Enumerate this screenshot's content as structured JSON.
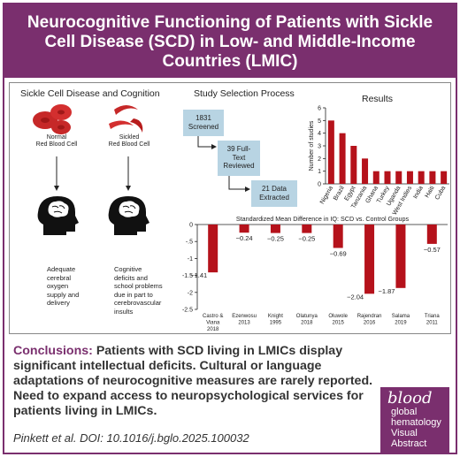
{
  "header": {
    "title_line1": "Neurocognitive Functioning of Patients with Sickle",
    "title_line2": "Cell Disease (SCD) in Low- and Middle-Income",
    "title_line3": "Countries (LMIC)"
  },
  "sections": {
    "cognition_title": "Sickle Cell Disease and Cognition",
    "selection_title": "Study Selection Process",
    "results_title": "Results"
  },
  "cognition": {
    "normal_label_1": "Normal",
    "normal_label_2": "Red Blood Cell",
    "sickled_label_1": "Sickled",
    "sickled_label_2": "Red Blood Cell",
    "normal_outcome": [
      "Adequate",
      "cerebral",
      "oxygen",
      "supply and",
      "delivery"
    ],
    "sickled_outcome": [
      "Cognitive",
      "deficits and",
      "school problems",
      "due in part to",
      "cerebrovascular",
      "insults"
    ]
  },
  "selection": {
    "box1": [
      "1831",
      "Screened"
    ],
    "box2": [
      "39 Full-",
      "Text",
      "Reviewed"
    ],
    "box3": [
      "21 Data",
      "Extracted"
    ]
  },
  "chart_data": [
    {
      "type": "bar",
      "title": "Results",
      "ylabel": "Number of studies",
      "categories": [
        "Nigeria",
        "Brazil",
        "Egypt",
        "Tanzania",
        "Ghana",
        "Turkey",
        "Uganda",
        "West Indies",
        "India",
        "Haiti",
        "Cuba"
      ],
      "values": [
        5,
        4,
        3,
        2,
        1,
        1,
        1,
        1,
        1,
        1,
        1
      ],
      "ylim": [
        0,
        6
      ],
      "yticks": [
        "0",
        "1",
        "2",
        "3",
        "4",
        "5",
        "6"
      ],
      "color": "#b5121b"
    },
    {
      "type": "bar",
      "title": "Standardized Mean Difference in IQ: SCD vs. Control Groups",
      "categories": [
        "Castro & Viana 2018",
        "Ezenwosu 2013",
        "Knight 1995",
        "Olatunya 2018",
        "Oluwole 2015",
        "Rajendran 2016",
        "Salama 2019",
        "Triana 2011"
      ],
      "category_lines": [
        [
          "Castro &",
          "Viana",
          "2018"
        ],
        [
          "Ezenwosu",
          "2013"
        ],
        [
          "Knight",
          "1995"
        ],
        [
          "Olatunya",
          "2018"
        ],
        [
          "Oluwole",
          "2015"
        ],
        [
          "Rajendran",
          "2016"
        ],
        [
          "Salama",
          "2019"
        ],
        [
          "Triana",
          "2011"
        ]
      ],
      "values": [
        -1.41,
        -0.24,
        -0.25,
        -0.25,
        -0.69,
        -2.04,
        -1.87,
        -0.57
      ],
      "value_labels": [
        "−1.41",
        "−0.24",
        "−0.25",
        "−0.25",
        "−0.69",
        "−2.04",
        "−1.87",
        "−0.57"
      ],
      "ylim": [
        -2.5,
        0
      ],
      "yticks": [
        "0",
        "-.5",
        "-1",
        "-1.5",
        "-2",
        "-2.5"
      ],
      "color": "#b5121b"
    }
  ],
  "conclusion": {
    "lead": "Conclusions:",
    "body": "Patients with SCD living in LMICs display significant intellectual deficits. Cultural or language adaptations of neurocognitive measures are rarely reported. Need to expand access to neuropsychological services for patients living in LMICs.",
    "citation": "Pinkett et al. DOI: 10.1016/j.bglo.2025.100032"
  },
  "logo": {
    "brand": "blood",
    "line1": "global",
    "line2": "hematology",
    "line3": "Visual",
    "line4": "Abstract"
  },
  "colors": {
    "accent": "#7a2f6e",
    "bar": "#b5121b",
    "flow_box": "#b8d4e3"
  }
}
